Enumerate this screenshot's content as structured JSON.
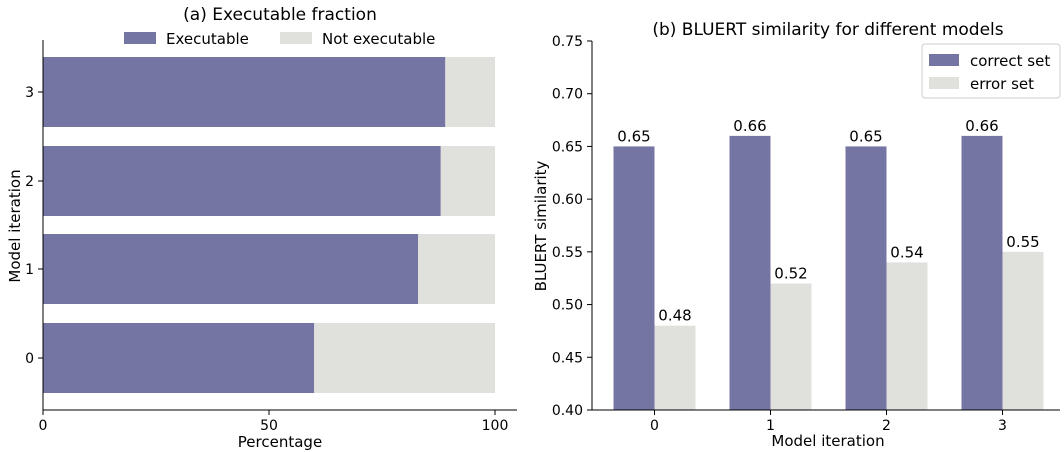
{
  "colors": {
    "primary": "#7575a3",
    "secondary": "#e0e0dc",
    "axis": "#000000"
  },
  "chart_data": [
    {
      "type": "bar",
      "orientation": "horizontal",
      "stacked": true,
      "title": "(a) Executable fraction",
      "xlabel": "Percentage",
      "ylabel": "Model iteration",
      "categories": [
        "0",
        "1",
        "2",
        "3"
      ],
      "xlim": [
        0,
        105
      ],
      "xticks": [
        "0",
        "50",
        "100"
      ],
      "legend_position": "top",
      "series": [
        {
          "name": "Executable",
          "color": "#7575a3",
          "values": [
            60,
            83,
            88,
            89
          ]
        },
        {
          "name": "Not executable",
          "color": "#e0e0dc",
          "values": [
            40,
            17,
            12,
            11
          ]
        }
      ]
    },
    {
      "type": "bar",
      "orientation": "vertical",
      "stacked": false,
      "title": "(b) BLUERT similarity for different models",
      "xlabel": "Model iteration",
      "ylabel": "BLUERT similarity",
      "categories": [
        "0",
        "1",
        "2",
        "3"
      ],
      "ylim": [
        0.4,
        0.75
      ],
      "yticks": [
        "0.40",
        "0.45",
        "0.50",
        "0.55",
        "0.60",
        "0.65",
        "0.70",
        "0.75"
      ],
      "legend_position": "top-right",
      "series": [
        {
          "name": "correct set",
          "color": "#7575a3",
          "values": [
            0.65,
            0.66,
            0.65,
            0.66
          ],
          "labels": [
            "0.65",
            "0.66",
            "0.65",
            "0.66"
          ]
        },
        {
          "name": "error set",
          "color": "#e0e0dc",
          "values": [
            0.48,
            0.52,
            0.54,
            0.55
          ],
          "labels": [
            "0.48",
            "0.52",
            "0.54",
            "0.55"
          ]
        }
      ]
    }
  ]
}
